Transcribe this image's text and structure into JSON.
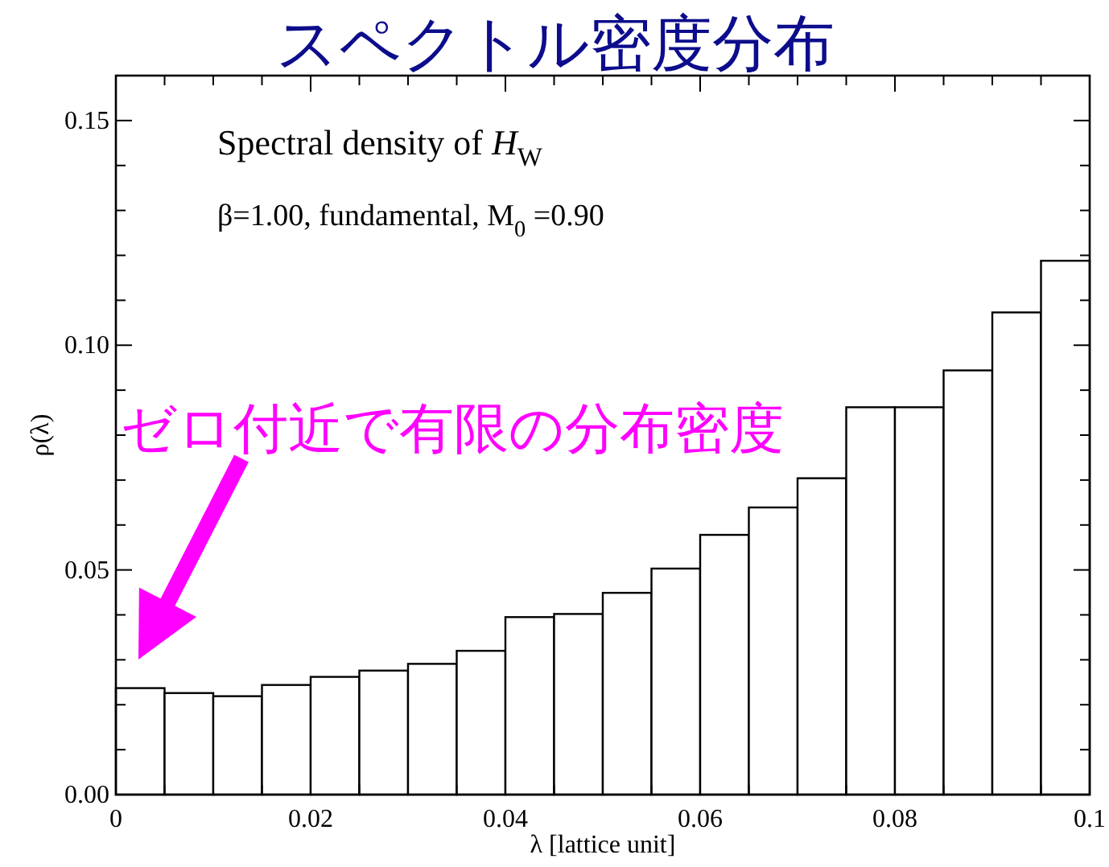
{
  "chart_data": {
    "type": "histogram",
    "title": "スペクトル密度分布",
    "xlabel": "λ [lattice unit]",
    "ylabel": "ρ(λ)",
    "bins": [
      0,
      0.005,
      0.01,
      0.015,
      0.02,
      0.025,
      0.03,
      0.035,
      0.04,
      0.045,
      0.05,
      0.055,
      0.06,
      0.065,
      0.07,
      0.075,
      0.08,
      0.085,
      0.09,
      0.095,
      0.1
    ],
    "values": [
      0.0237,
      0.0226,
      0.0219,
      0.0244,
      0.0262,
      0.0276,
      0.0291,
      0.032,
      0.0395,
      0.0402,
      0.0449,
      0.0503,
      0.0578,
      0.0639,
      0.0704,
      0.0862,
      0.0862,
      0.0944,
      0.1073,
      0.1188
    ],
    "color": "#ffffff",
    "xlim": [
      0,
      0.1
    ],
    "ylim": [
      0,
      0.16
    ],
    "xticks": [
      0,
      {
        "value": 0.005,
        "label": null
      },
      {
        "value": 0.01,
        "label": null
      },
      {
        "value": 0.015,
        "label": null
      },
      "0.02",
      {
        "value": 0.025,
        "label": null
      },
      {
        "value": 0.03,
        "label": null
      },
      {
        "value": 0.035,
        "label": null
      },
      {
        "value": 0.04,
        "label": "0.04"
      },
      {
        "value": 0.045,
        "label": null
      },
      {
        "value": 0.05,
        "label": null
      },
      {
        "value": 0.055,
        "label": null
      },
      {
        "value": 0.06,
        "label": "0.06"
      },
      {
        "value": 0.065,
        "label": null
      },
      {
        "value": 0.07,
        "label": null
      },
      {
        "value": 0.075,
        "label": null
      },
      {
        "value": 0.08,
        "label": "0.08"
      },
      {
        "value": 0.085,
        "label": null
      },
      {
        "value": 0.09,
        "label": null
      },
      {
        "value": 0.095,
        "label": null
      },
      {
        "value": 0.1,
        "label": "0.1"
      }
    ],
    "yticks": [
      {
        "value": 0,
        "label": "0.00"
      },
      {
        "value": 0.01,
        "label": null
      },
      {
        "value": 0.02,
        "label": null
      },
      {
        "value": 0.03,
        "label": null
      },
      {
        "value": 0.04,
        "label": null
      },
      {
        "value": 0.05,
        "label": "0.05"
      },
      {
        "value": 0.06,
        "label": null
      },
      {
        "value": 0.07,
        "label": null
      },
      {
        "value": 0.08,
        "label": null
      },
      {
        "value": 0.09,
        "label": null
      },
      {
        "value": 0.1,
        "label": "0.10"
      },
      {
        "value": 0.11,
        "label": null
      },
      {
        "value": 0.12,
        "label": null
      },
      {
        "value": 0.13,
        "label": null
      },
      {
        "value": 0.14,
        "label": null
      },
      {
        "value": 0.15,
        "label": "0.15"
      }
    ],
    "annotations": [
      "Spectral density of *H*$_{W}$",
      "β=1.00,  fundamental, M$_{0}$ =0.90",
      "ゼロ付近で有限の分布密度"
    ]
  }
}
